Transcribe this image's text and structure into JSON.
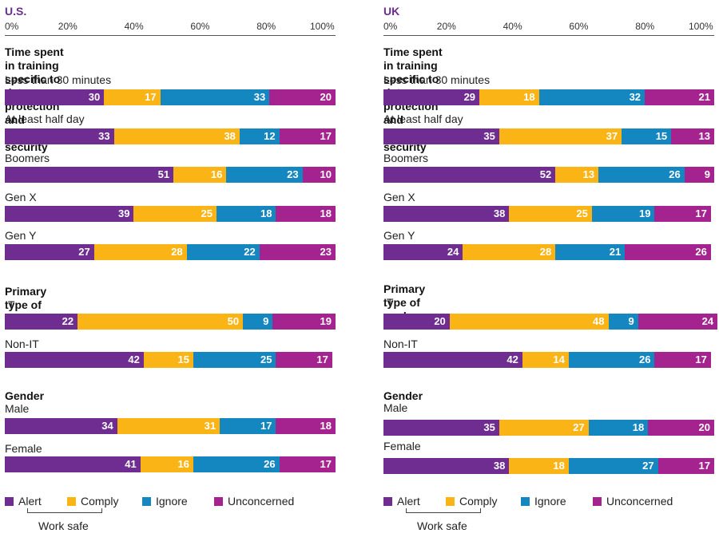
{
  "colors": {
    "alert": "#6f2c91",
    "comply": "#fbb416",
    "ignore": "#1587c0",
    "unconcerned": "#a5238f"
  },
  "legend": {
    "alert": "Alert",
    "comply": "Comply",
    "ignore": "Ignore",
    "unconcerned": "Unconcerned",
    "work_safe": "Work safe"
  },
  "axis_ticks": [
    "0%",
    "20%",
    "40%",
    "60%",
    "80%",
    "100%"
  ],
  "chart_data": [
    {
      "type": "bar",
      "stacked": true,
      "orientation": "horizontal",
      "title": "U.S.",
      "xlim": [
        0,
        100
      ],
      "series_names": [
        "Alert",
        "Comply",
        "Ignore",
        "Unconcerned"
      ],
      "sections": [
        {
          "title": "Time spent in training specific to data protection and information security",
          "title_lines": [
            "Time spent in training specific to data protection and",
            "information security"
          ]
        },
        {
          "title": "Primary type of work"
        },
        {
          "title": "Gender"
        }
      ],
      "categories": [
        {
          "label": "Less than 30 minutes",
          "values": [
            30,
            17,
            33,
            20
          ]
        },
        {
          "label": "At least half day",
          "values": [
            33,
            38,
            12,
            17
          ]
        },
        {
          "label": "Boomers",
          "values": [
            51,
            16,
            23,
            10
          ]
        },
        {
          "label": "Gen X",
          "values": [
            39,
            25,
            18,
            18
          ]
        },
        {
          "label": "Gen Y",
          "values": [
            27,
            28,
            22,
            23
          ]
        },
        {
          "label": "IT",
          "values": [
            22,
            50,
            9,
            19
          ]
        },
        {
          "label": "Non-IT",
          "values": [
            42,
            15,
            25,
            17
          ]
        },
        {
          "label": "Male",
          "values": [
            34,
            31,
            17,
            18
          ]
        },
        {
          "label": "Female",
          "values": [
            41,
            16,
            26,
            17
          ]
        }
      ]
    },
    {
      "type": "bar",
      "stacked": true,
      "orientation": "horizontal",
      "title": "UK",
      "xlim": [
        0,
        100
      ],
      "series_names": [
        "Alert",
        "Comply",
        "Ignore",
        "Unconcerned"
      ],
      "sections": [
        {
          "title": "Time spent in training specific to data protection and information security",
          "title_lines": [
            "Time spent in training specific to data protection and",
            "information security"
          ]
        },
        {
          "title": "Primary type of work"
        },
        {
          "title": "Gender"
        }
      ],
      "categories": [
        {
          "label": "Less than 30 minutes",
          "values": [
            29,
            18,
            32,
            21
          ]
        },
        {
          "label": "At least half day",
          "values": [
            35,
            37,
            15,
            13
          ]
        },
        {
          "label": "Boomers",
          "values": [
            52,
            13,
            26,
            9
          ]
        },
        {
          "label": "Gen X",
          "values": [
            38,
            25,
            19,
            17
          ]
        },
        {
          "label": "Gen Y",
          "values": [
            24,
            28,
            21,
            26
          ]
        },
        {
          "label": "IT",
          "values": [
            20,
            48,
            9,
            24
          ]
        },
        {
          "label": "Non-IT",
          "values": [
            42,
            14,
            26,
            17
          ]
        },
        {
          "label": "Male",
          "values": [
            35,
            27,
            18,
            20
          ]
        },
        {
          "label": "Female",
          "values": [
            38,
            18,
            27,
            17
          ]
        }
      ]
    }
  ]
}
